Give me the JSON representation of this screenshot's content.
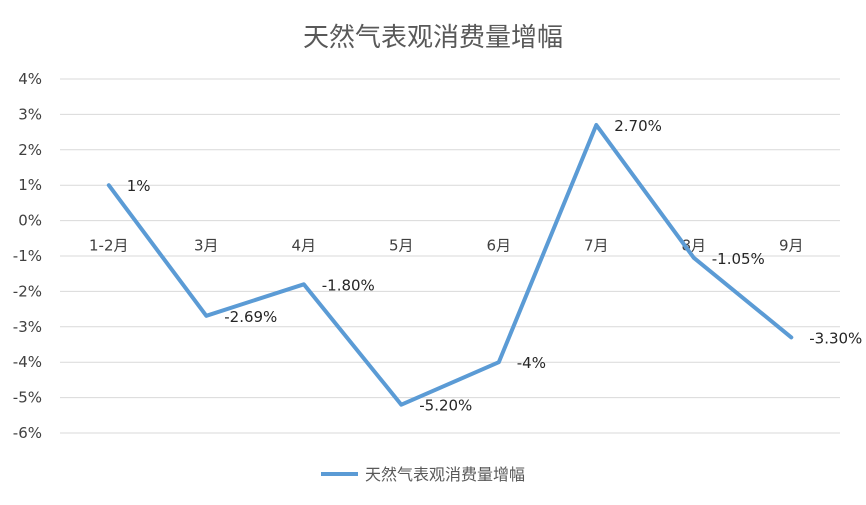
{
  "chart_data": {
    "type": "line",
    "title": "天然气表观消费量增幅",
    "categories": [
      "1-2月",
      "3月",
      "4月",
      "5月",
      "6月",
      "7月",
      "8月",
      "9月"
    ],
    "series": [
      {
        "name": "天然气表观消费量增幅",
        "values": [
          1,
          -2.69,
          -1.8,
          -5.2,
          -4,
          2.7,
          -1.05,
          -3.3
        ],
        "data_labels": [
          "1%",
          "-2.69%",
          "-1.80%",
          "-5.20%",
          "-4%",
          "2.70%",
          "-1.05%",
          "-3.30%"
        ],
        "color": "#5B9BD5"
      }
    ],
    "ylim": [
      -6,
      4
    ],
    "yticks": [
      4,
      3,
      2,
      1,
      0,
      -1,
      -2,
      -3,
      -4,
      -5,
      -6
    ],
    "ytick_labels": [
      "4%",
      "3%",
      "2%",
      "1%",
      "0%",
      "-1%",
      "-2%",
      "-3%",
      "-4%",
      "-5%",
      "-6%"
    ],
    "xlabel": "",
    "ylabel": "",
    "grid": true,
    "legend": "bottom",
    "gridline_color": "#D9D9D9"
  }
}
